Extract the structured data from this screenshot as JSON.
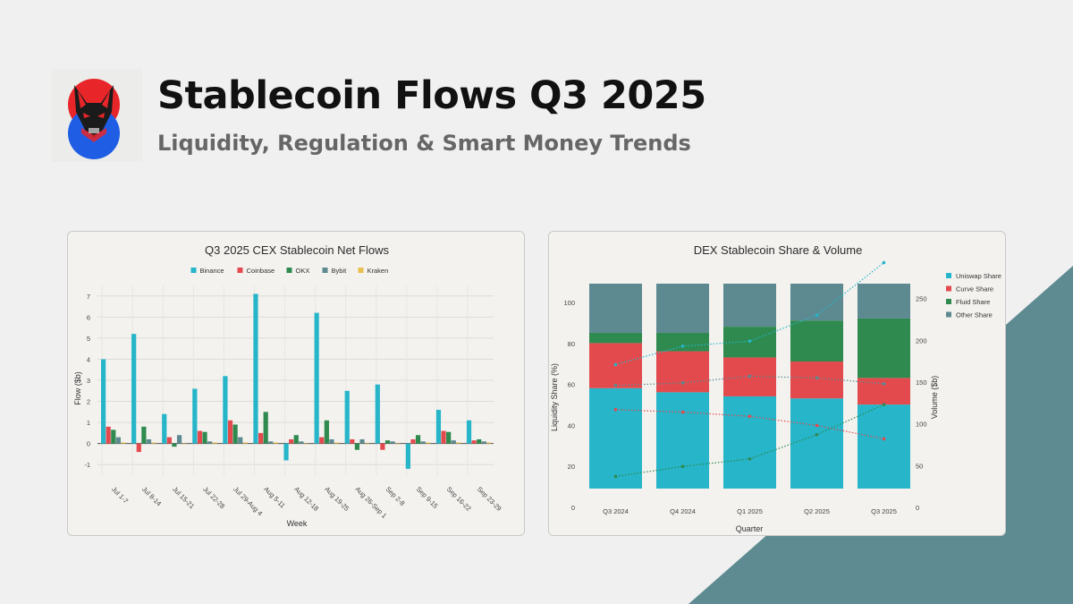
{
  "header": {
    "title": "Stablecoin Flows Q3 2025",
    "subtitle": "Liquidity, Regulation & Smart Money Trends"
  },
  "colors": {
    "background": "#f0f0f0",
    "accent_teal": "#5e8a91",
    "logo_red": "#e8262a",
    "logo_blue": "#1f5de5"
  },
  "icons": [
    "fox-logo-icon"
  ],
  "chart_data": [
    {
      "type": "bar",
      "title": "Q3 2025 CEX Stablecoin Net Flows",
      "xlabel": "Week",
      "ylabel": "Flow ($b)",
      "ylim": [
        -1.5,
        7.5
      ],
      "yticks": [
        -1,
        0,
        1,
        2,
        3,
        4,
        5,
        6,
        7
      ],
      "grid": true,
      "legend_position": "top",
      "categories": [
        "Jul 1-7",
        "Jul 8-14",
        "Jul 15-21",
        "Jul 22-28",
        "Jul 29-Aug 4",
        "Aug 5-11",
        "Aug 12-18",
        "Aug 19-25",
        "Aug 26-Sep 1",
        "Sep 2-8",
        "Sep 9-15",
        "Sep 16-22",
        "Sep 23-29"
      ],
      "series": [
        {
          "name": "Binance",
          "color": "#26b5c9",
          "values": [
            4.0,
            5.2,
            1.4,
            2.6,
            3.2,
            7.1,
            -0.8,
            6.2,
            2.5,
            2.8,
            -1.2,
            1.6,
            1.1
          ]
        },
        {
          "name": "Coinbase",
          "color": "#e34a4e",
          "values": [
            0.8,
            -0.4,
            0.3,
            0.6,
            1.1,
            0.5,
            0.2,
            0.3,
            0.2,
            -0.3,
            0.2,
            0.6,
            0.15
          ]
        },
        {
          "name": "OKX",
          "color": "#2e8a4e",
          "values": [
            0.65,
            0.8,
            -0.15,
            0.55,
            0.9,
            1.5,
            0.4,
            1.1,
            -0.3,
            0.15,
            0.4,
            0.55,
            0.2
          ]
        },
        {
          "name": "Bybit",
          "color": "#5c8a90",
          "values": [
            0.3,
            0.2,
            0.4,
            0.1,
            0.3,
            0.1,
            0.1,
            0.2,
            0.2,
            0.1,
            0.1,
            0.15,
            0.1
          ]
        },
        {
          "name": "Kraken",
          "color": "#e8c050",
          "values": [
            0.05,
            0.05,
            0.0,
            0.05,
            0.05,
            0.05,
            0.0,
            0.05,
            0.0,
            0.0,
            0.05,
            0.05,
            0.05
          ]
        }
      ]
    },
    {
      "type": "bar",
      "stacked": true,
      "title": "DEX Stablecoin Share & Volume",
      "xlabel": "Quarter",
      "ylabel": "Liquidity Share (%)",
      "y2label": "Volume ($b)",
      "ylim": [
        0,
        110
      ],
      "yticks": [
        0,
        20,
        40,
        60,
        80,
        100
      ],
      "y2lim": [
        0,
        300
      ],
      "y2ticks": [
        0,
        50,
        100,
        150,
        200,
        250
      ],
      "grid": false,
      "legend_position": "right",
      "categories": [
        "Q3 2024",
        "Q4 2024",
        "Q1 2025",
        "Q2 2025",
        "Q3 2025"
      ],
      "series": [
        {
          "name": "Uniswap Share",
          "color": "#26b5c9",
          "values": [
            49,
            47,
            45,
            44,
            41
          ]
        },
        {
          "name": "Curve Share",
          "color": "#e34a4e",
          "values": [
            22,
            20,
            19,
            18,
            13
          ]
        },
        {
          "name": "Fluid Share",
          "color": "#2e8a4e",
          "values": [
            5,
            9,
            15,
            20,
            29
          ]
        },
        {
          "name": "Other Share",
          "color": "#5c8a90",
          "values": [
            24,
            24,
            21,
            18,
            17
          ]
        }
      ],
      "lines": [
        {
          "color": "#26b5c9",
          "values": [
            171,
            193,
            199,
            230,
            293
          ]
        },
        {
          "color": "#5c8a90",
          "values": [
            146,
            149,
            157,
            155,
            148
          ]
        },
        {
          "color": "#e34a4e",
          "values": [
            117,
            114,
            109,
            98,
            82
          ]
        },
        {
          "color": "#2e8a4e",
          "values": [
            37,
            49,
            58,
            87,
            123
          ]
        }
      ]
    }
  ]
}
